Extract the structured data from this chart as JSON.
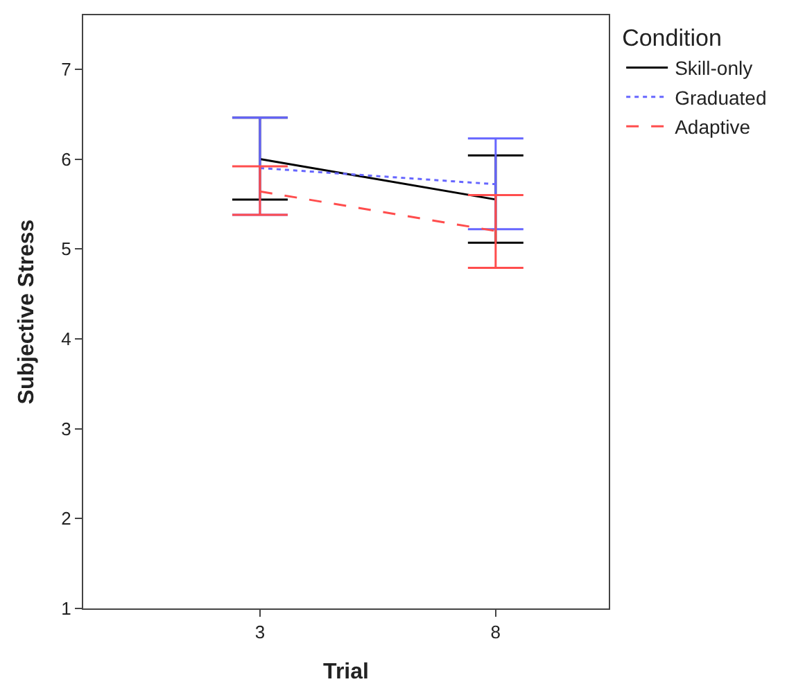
{
  "chart_data": {
    "type": "line",
    "xlabel": "Trial",
    "ylabel": "Subjective Stress",
    "legend_title": "Condition",
    "categories": [
      "3",
      "8"
    ],
    "ylim": [
      1,
      7.6
    ],
    "yticks": [
      1,
      2,
      3,
      4,
      5,
      6,
      7
    ],
    "legend": "top right",
    "marker": "none",
    "series": [
      {
        "name": "Skill-only",
        "color": "#000000",
        "line_style": "solid",
        "values": [
          6.0,
          5.55
        ],
        "errors": [
          [
            5.55,
            6.46
          ],
          [
            5.07,
            6.04
          ]
        ]
      },
      {
        "name": "Graduated",
        "color": "#6666ff",
        "line_style": "dotted",
        "values": [
          5.9,
          5.72
        ],
        "errors": [
          [
            5.38,
            6.46
          ],
          [
            5.22,
            6.23
          ]
        ]
      },
      {
        "name": "Adaptive",
        "color": "#ff4d4d",
        "line_style": "dashed",
        "values": [
          5.64,
          5.2
        ],
        "errors": [
          [
            5.38,
            5.92
          ],
          [
            4.79,
            5.6
          ]
        ]
      }
    ]
  }
}
